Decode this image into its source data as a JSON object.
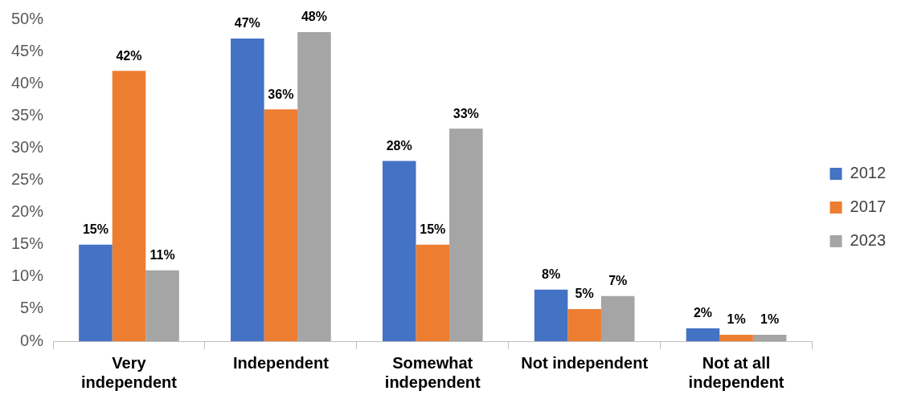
{
  "chart_data": {
    "type": "bar",
    "categories": [
      "Very independent",
      "Independent",
      "Somewhat independent",
      "Not independent",
      "Not at all independent"
    ],
    "series": [
      {
        "name": "2012",
        "color": "#4472c4",
        "values": [
          15,
          47,
          28,
          8,
          2
        ],
        "value_labels": [
          "15%",
          "47%",
          "28%",
          "8%",
          "2%"
        ]
      },
      {
        "name": "2017",
        "color": "#ed7d31",
        "values": [
          42,
          36,
          15,
          5,
          1
        ],
        "value_labels": [
          "42%",
          "36%",
          "15%",
          "5%",
          "1%"
        ]
      },
      {
        "name": "2023",
        "color": "#a5a5a5",
        "values": [
          11,
          48,
          33,
          7,
          1
        ],
        "value_labels": [
          "11%",
          "48%",
          "33%",
          "7%",
          "1%"
        ]
      }
    ],
    "ylim": [
      0,
      50
    ],
    "yticks": [
      {
        "value": 0,
        "label": "0%"
      },
      {
        "value": 5,
        "label": "5%"
      },
      {
        "value": 10,
        "label": "10%"
      },
      {
        "value": 15,
        "label": "15%"
      },
      {
        "value": 20,
        "label": "20%"
      },
      {
        "value": 25,
        "label": "25%"
      },
      {
        "value": 30,
        "label": "30%"
      },
      {
        "value": 35,
        "label": "35%"
      },
      {
        "value": 40,
        "label": "40%"
      },
      {
        "value": 45,
        "label": "45%"
      },
      {
        "value": 50,
        "label": "50%"
      }
    ],
    "grid": false,
    "legend": "right"
  }
}
